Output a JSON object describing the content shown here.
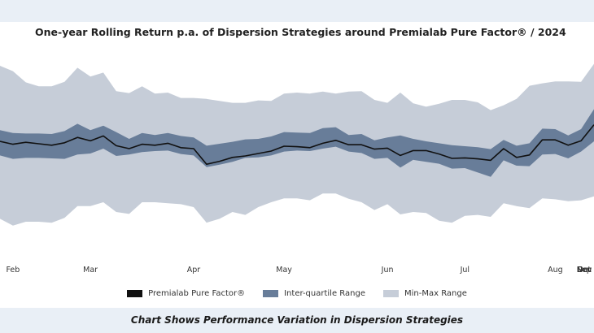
{
  "caption": "Chart Shows Performance Variation in Dispersion Strategies",
  "chart_data": {
    "type": "area",
    "title": "One-year Rolling Return p.a. of Dispersion Strategies around Premialab Pure Factor® / 2024",
    "xlabel": "",
    "ylabel": "",
    "grid": false,
    "legend_position": "bottom-center",
    "month_ticks": [
      "Feb",
      "Mar",
      "Apr",
      "May",
      "Jun",
      "Jul",
      "Aug",
      "Sep",
      "Oct",
      "Nov",
      "Dec"
    ],
    "month_tick_index": [
      1,
      7,
      15,
      22,
      30,
      36,
      43,
      51,
      58,
      65,
      73
    ],
    "legend": {
      "median": "Premialab Pure Factor®",
      "iqr": "Inter-quartile Range",
      "minmax": "Min-Max Range"
    },
    "colors": {
      "median": "#111111",
      "iqr": "#687d99",
      "minmax": "#c6cdd8"
    },
    "ylim": [
      -10,
      10
    ],
    "median": [
      1.75,
      1.45,
      1.65,
      1.5,
      1.35,
      1.6,
      2.15,
      1.8,
      2.3,
      1.3,
      1.0,
      1.45,
      1.35,
      1.55,
      1.1,
      1.0,
      -0.6,
      -0.3,
      0.1,
      0.25,
      0.5,
      0.75,
      1.25,
      1.2,
      1.1,
      1.55,
      1.85,
      1.4,
      1.4,
      0.95,
      1.05,
      0.3,
      0.8,
      0.8,
      0.45,
      0.0,
      0.05,
      -0.05,
      -0.2,
      1.0,
      0.1,
      0.35,
      1.9,
      1.9,
      1.35,
      1.8,
      3.45
    ],
    "q1": [
      0.3,
      -0.05,
      0.05,
      0.05,
      0.0,
      -0.05,
      0.4,
      0.5,
      1.0,
      0.25,
      0.4,
      0.65,
      0.75,
      0.8,
      0.45,
      0.3,
      -0.9,
      -0.65,
      -0.35,
      0.05,
      0.1,
      0.3,
      0.7,
      0.8,
      0.75,
      1.0,
      1.2,
      0.7,
      0.55,
      -0.05,
      0.05,
      -0.95,
      -0.15,
      -0.35,
      -0.55,
      -1.05,
      -1.0,
      -1.45,
      -1.9,
      -0.2,
      -0.75,
      -0.8,
      0.4,
      0.45,
      0.0,
      0.7,
      1.75
    ],
    "q3": [
      2.9,
      2.6,
      2.55,
      2.55,
      2.5,
      2.8,
      3.55,
      2.9,
      3.35,
      2.7,
      2.0,
      2.6,
      2.4,
      2.6,
      2.3,
      2.15,
      1.3,
      1.5,
      1.7,
      1.95,
      2.0,
      2.25,
      2.7,
      2.65,
      2.6,
      3.1,
      3.2,
      2.4,
      2.5,
      1.85,
      2.15,
      2.35,
      2.0,
      1.75,
      1.55,
      1.35,
      1.25,
      1.15,
      0.95,
      1.9,
      1.3,
      1.55,
      3.05,
      3.0,
      2.35,
      3.0,
      5.05
    ],
    "min": [
      -6.2,
      -6.9,
      -6.5,
      -6.5,
      -6.6,
      -6.1,
      -4.9,
      -4.9,
      -4.5,
      -5.5,
      -5.7,
      -4.5,
      -4.5,
      -4.6,
      -4.7,
      -5.0,
      -6.6,
      -6.2,
      -5.5,
      -5.8,
      -5.0,
      -4.5,
      -4.1,
      -4.1,
      -4.3,
      -3.6,
      -3.6,
      -4.15,
      -4.5,
      -5.3,
      -4.7,
      -5.75,
      -5.5,
      -5.6,
      -6.4,
      -6.6,
      -5.9,
      -5.8,
      -6.0,
      -4.6,
      -4.9,
      -5.1,
      -4.1,
      -4.2,
      -4.4,
      -4.3,
      -3.9
    ],
    "max": [
      9.5,
      8.95,
      7.8,
      7.4,
      7.4,
      7.85,
      9.3,
      8.4,
      8.8,
      6.9,
      6.7,
      7.4,
      6.65,
      6.75,
      6.2,
      6.2,
      6.1,
      5.9,
      5.7,
      5.7,
      5.95,
      5.9,
      6.65,
      6.75,
      6.65,
      6.85,
      6.65,
      6.85,
      6.9,
      6.0,
      5.7,
      6.75,
      5.65,
      5.3,
      5.6,
      6.0,
      6.0,
      5.75,
      4.95,
      5.45,
      6.1,
      7.45,
      7.7,
      7.9,
      7.9,
      7.85,
      9.7
    ]
  }
}
